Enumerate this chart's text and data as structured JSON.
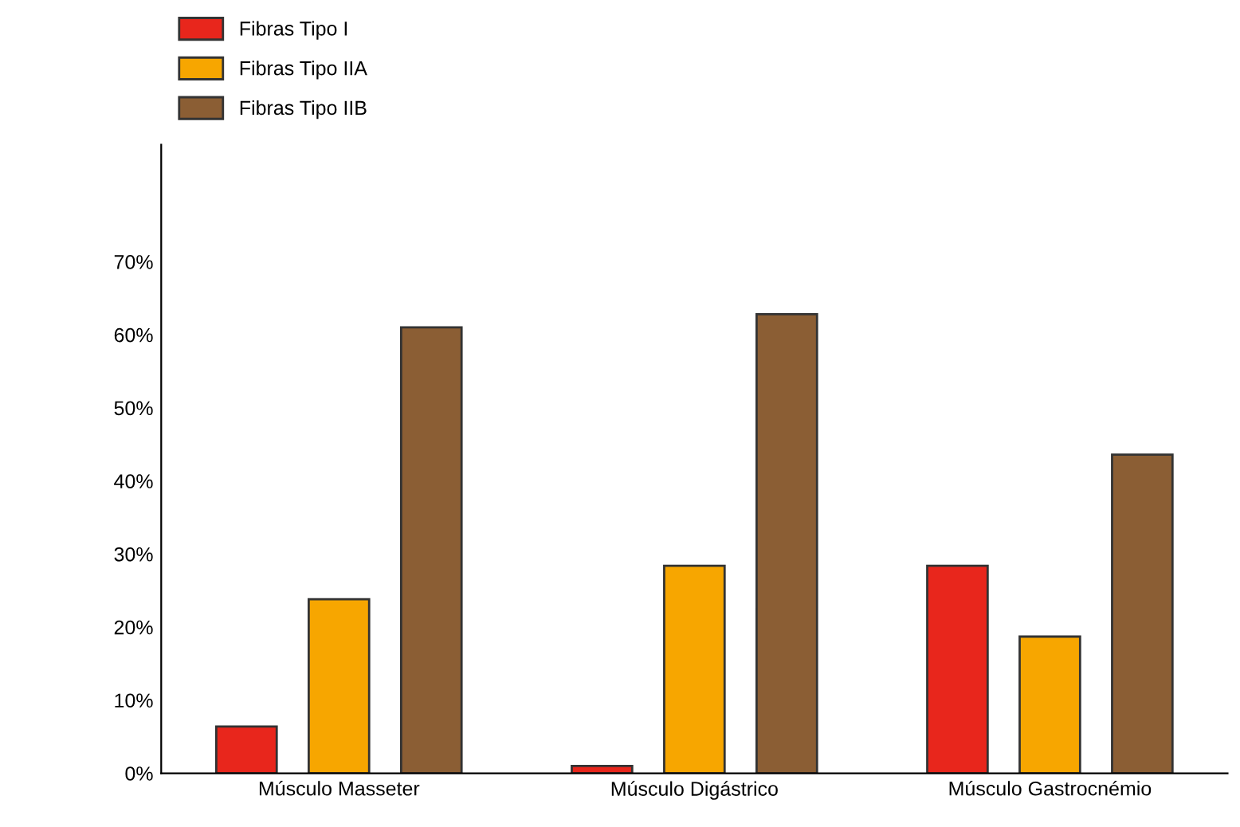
{
  "chart_data": {
    "type": "bar",
    "categories": [
      "Músculo Masseter",
      "Músculo Digástrico",
      "Músculo Gastrocnémio"
    ],
    "series": [
      {
        "name": "Fibras Tipo I",
        "color": "#e8261c",
        "values": [
          6.4,
          1,
          28.4
        ]
      },
      {
        "name": "Fibras Tipo IIA",
        "color": "#f7a600",
        "values": [
          23.8,
          28.4,
          18.7
        ]
      },
      {
        "name": "Fibras Tipo IIB",
        "color": "#8b5e34",
        "values": [
          61,
          62.8,
          43.6
        ]
      }
    ],
    "ylim": [
      0,
      86
    ],
    "yticks": [
      {
        "value": 0,
        "label": "0%"
      },
      {
        "value": 10,
        "label": "10%"
      },
      {
        "value": 20,
        "label": "20%"
      },
      {
        "value": 30,
        "label": "30%"
      },
      {
        "value": 40,
        "label": "40%"
      },
      {
        "value": 50,
        "label": "50%"
      },
      {
        "value": 60,
        "label": "60%"
      },
      {
        "value": 70,
        "label": "70%"
      }
    ],
    "grid": false,
    "legend": "top left"
  }
}
